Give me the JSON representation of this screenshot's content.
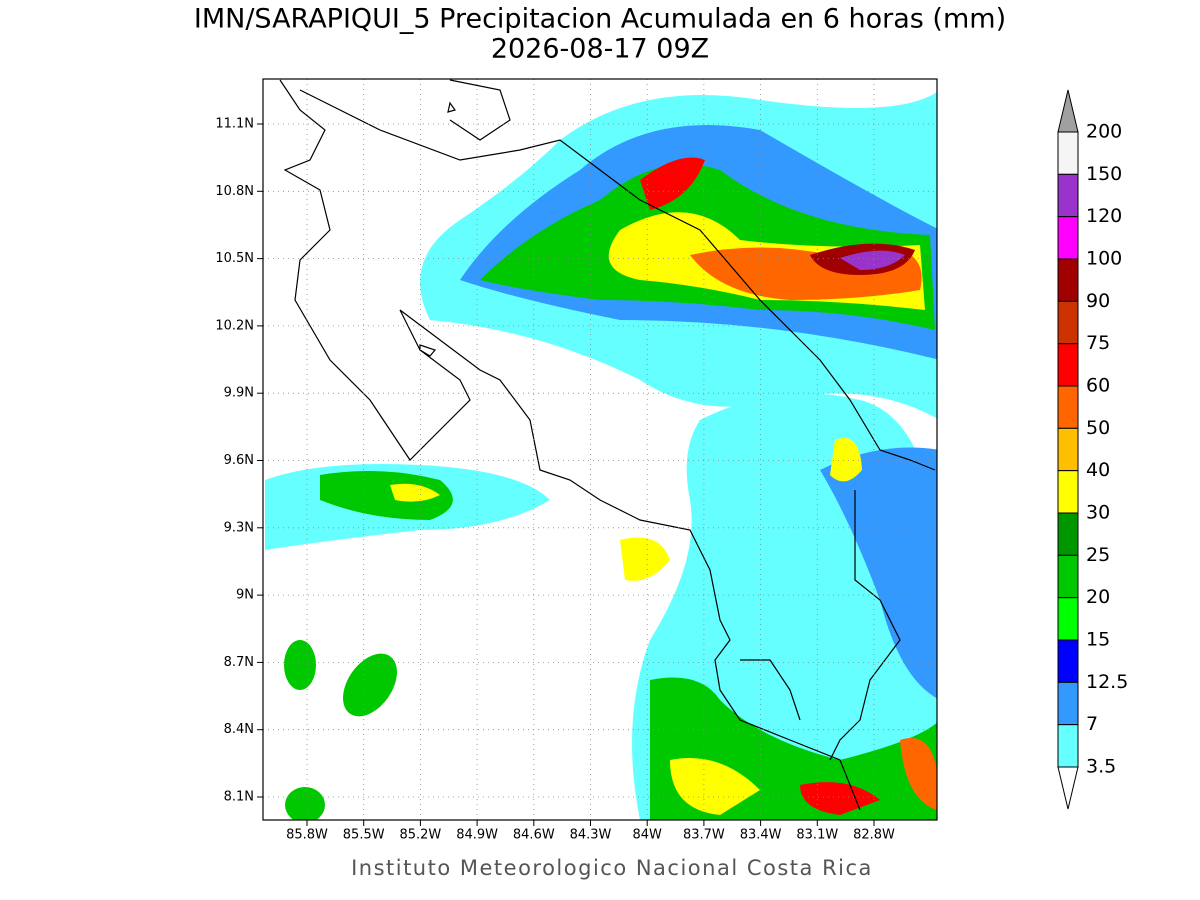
{
  "header": {
    "title": "IMN/SARAPIQUI_5 Precipitacion Acumulada en 6 horas (mm)",
    "subtitle": "2026-08-17 09Z"
  },
  "map": {
    "lon_labels": [
      "85.8W",
      "85.5W",
      "85.2W",
      "84.9W",
      "84.6W",
      "84.3W",
      "84W",
      "83.7W",
      "83.4W",
      "83.1W",
      "82.8W"
    ],
    "lat_labels": [
      "11.1N",
      "10.8N",
      "10.5N",
      "10.2N",
      "9.9N",
      "9.6N",
      "9.3N",
      "9N",
      "8.7N",
      "8.4N",
      "8.1N"
    ]
  },
  "legend": {
    "labels": [
      "200",
      "150",
      "120",
      "100",
      "90",
      "75",
      "60",
      "50",
      "40",
      "30",
      "25",
      "20",
      "15",
      "12.5",
      "7",
      "3.5"
    ]
  },
  "footer": "Instituto Meteorologico Nacional Costa Rica"
}
